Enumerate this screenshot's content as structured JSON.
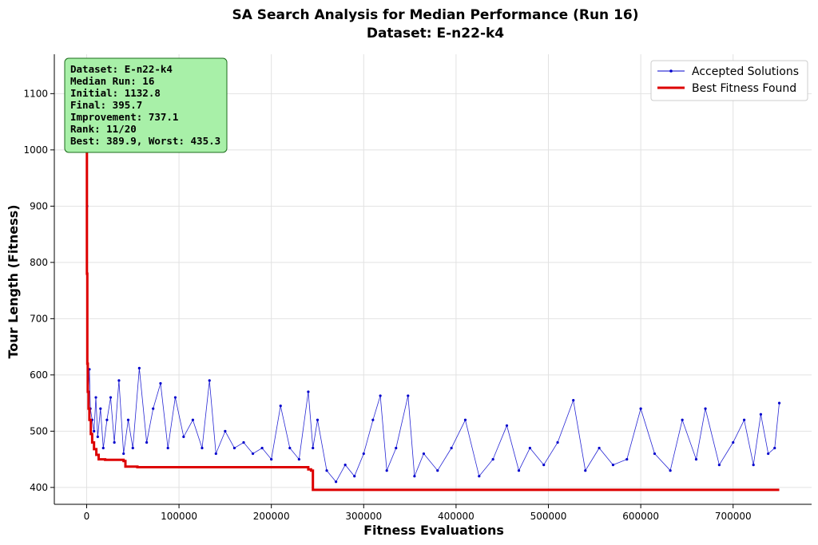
{
  "chart_data": {
    "type": "line",
    "title": "SA Search Analysis for Median Performance (Run 16)",
    "subtitle": "Dataset: E-n22-k4",
    "xlabel": "Fitness Evaluations",
    "ylabel": "Tour Length (Fitness)",
    "xlim": [
      -35000,
      785000
    ],
    "ylim": [
      370,
      1170
    ],
    "xticks": [
      0,
      100000,
      200000,
      300000,
      400000,
      500000,
      600000,
      700000
    ],
    "yticks": [
      400,
      500,
      600,
      700,
      800,
      900,
      1000,
      1100
    ],
    "grid": true,
    "legend_position": "top-right",
    "info_box": [
      "Dataset: E-n22-k4",
      "Median Run: 16",
      "Initial: 1132.8",
      "Final: 395.7",
      "Improvement: 737.1",
      "Rank: 11/20",
      "Best: 389.9, Worst: 435.3"
    ],
    "series": [
      {
        "name": "Accepted Solutions",
        "color": "#0000cc",
        "style": "thin line with dot markers",
        "x": [
          0,
          500,
          1000,
          2000,
          3000,
          4000,
          6000,
          8000,
          10000,
          12000,
          15000,
          18000,
          22000,
          26000,
          30000,
          35000,
          40000,
          45000,
          50000,
          57000,
          65000,
          72000,
          80000,
          88000,
          96000,
          105000,
          115000,
          125000,
          133000,
          140000,
          150000,
          160000,
          170000,
          180000,
          190000,
          200000,
          210000,
          220000,
          230000,
          240000,
          245000,
          250000,
          260000,
          270000,
          280000,
          290000,
          300000,
          310000,
          318000,
          325000,
          335000,
          348000,
          355000,
          365000,
          380000,
          395000,
          410000,
          425000,
          440000,
          455000,
          468000,
          480000,
          495000,
          510000,
          527000,
          540000,
          555000,
          570000,
          585000,
          600000,
          615000,
          632000,
          645000,
          660000,
          670000,
          685000,
          700000,
          712000,
          722000,
          730000,
          738000,
          745000,
          750000
        ],
        "y": [
          1132.8,
          900,
          620,
          570,
          610,
          540,
          520,
          500,
          560,
          490,
          540,
          470,
          520,
          560,
          480,
          590,
          460,
          520,
          470,
          612,
          480,
          540,
          585,
          470,
          560,
          490,
          520,
          470,
          590,
          460,
          500,
          470,
          480,
          460,
          470,
          450,
          545,
          470,
          450,
          570,
          470,
          520,
          430,
          410,
          440,
          420,
          460,
          520,
          563,
          430,
          470,
          563,
          420,
          460,
          430,
          470,
          520,
          420,
          450,
          510,
          430,
          470,
          440,
          480,
          555,
          430,
          470,
          440,
          450,
          540,
          460,
          430,
          520,
          450,
          540,
          440,
          480,
          520,
          440,
          530,
          460,
          470,
          550
        ]
      },
      {
        "name": "Best Fitness Found",
        "color": "#dd0000",
        "style": "thick step line",
        "x": [
          0,
          300,
          700,
          1200,
          2000,
          3000,
          4500,
          6000,
          8000,
          10500,
          13000,
          20000,
          30000,
          40000,
          42000,
          55000,
          100000,
          150000,
          200000,
          232000,
          240000,
          243000,
          245000,
          300000,
          400000,
          500000,
          600000,
          700000,
          750000
        ],
        "y": [
          1132.8,
          780,
          620,
          570,
          540,
          520,
          495,
          480,
          468,
          458,
          450,
          449,
          449,
          447,
          437,
          436,
          436,
          436,
          436,
          436,
          432,
          430,
          395.7,
          395.7,
          395.7,
          395.7,
          395.7,
          395.7,
          395.7
        ]
      }
    ]
  }
}
